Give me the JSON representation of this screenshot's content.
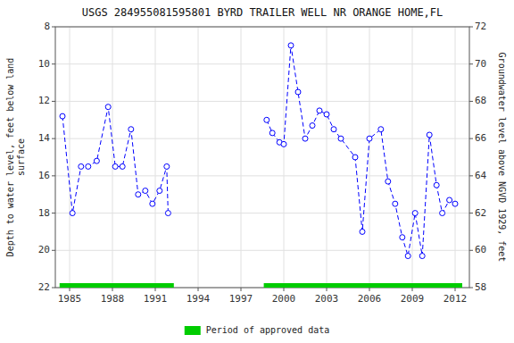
{
  "chart_data": {
    "type": "line",
    "title": "USGS 284955081595801 BYRD TRAILER WELL NR ORANGE HOME,FL",
    "ylabel": "Depth to water level, feet below land\nsurface",
    "y2label": "Groundwater level above NGVD 1929, feet",
    "xlim": [
      1984,
      2013
    ],
    "xticks": [
      1985,
      1988,
      1991,
      1994,
      1997,
      2000,
      2003,
      2006,
      2009,
      2012
    ],
    "ylim": [
      22,
      8
    ],
    "yticks": [
      8,
      10,
      12,
      14,
      16,
      18,
      20,
      22
    ],
    "y2lim": [
      58,
      72
    ],
    "y2ticks": [
      58,
      60,
      62,
      64,
      66,
      68,
      70,
      72
    ],
    "grid": true,
    "legend": "bottom",
    "series": [
      {
        "color": "blue",
        "marker": "circle",
        "line_style": "dashed",
        "x": [
          1984.5,
          1985.2,
          1985.8,
          1986.3,
          1986.9,
          1987.7,
          1988.2,
          1988.7,
          1989.3,
          1989.8,
          1990.3,
          1990.8,
          1991.3,
          1991.8,
          1991.9,
          null,
          1998.8,
          1999.2,
          1999.7,
          2000.0,
          2000.5,
          2001.0,
          2001.5,
          2002.0,
          2002.5,
          2003.0,
          2003.5,
          2004.0,
          2005.0,
          2005.5,
          2006.0,
          2006.8,
          2007.3,
          2007.8,
          2008.3,
          2008.7,
          2009.2,
          2009.7,
          2010.2,
          2010.7,
          2011.1,
          2011.6,
          2012.0
        ],
        "values": [
          12.8,
          18.0,
          15.5,
          15.5,
          15.2,
          12.3,
          15.5,
          15.5,
          13.5,
          17.0,
          16.8,
          17.5,
          16.8,
          15.5,
          18.0,
          null,
          13.0,
          13.7,
          14.2,
          14.3,
          9.0,
          11.5,
          14.0,
          13.3,
          12.5,
          12.7,
          13.5,
          14.0,
          15.0,
          19.0,
          14.0,
          13.5,
          16.3,
          17.5,
          19.3,
          20.3,
          18.0,
          20.3,
          13.8,
          16.5,
          18.0,
          17.3,
          17.5
        ]
      }
    ],
    "approved_periods": {
      "name": "Period of approved data",
      "color": "#00cc00",
      "start": [
        1984.3,
        1998.6
      ],
      "end": [
        1992.3,
        2012.5
      ]
    }
  }
}
